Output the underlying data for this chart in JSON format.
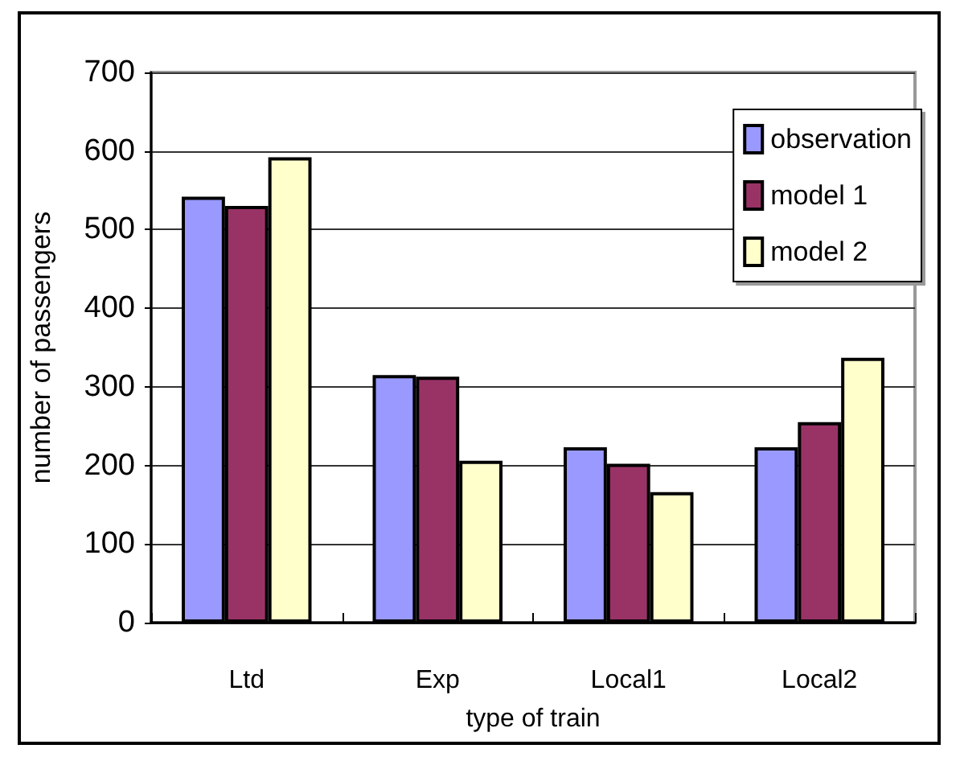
{
  "chart_data": {
    "type": "bar",
    "xlabel": "type of train",
    "ylabel": "number of passengers",
    "categories": [
      "Ltd",
      "Exp",
      "Local1",
      "Local2"
    ],
    "series": [
      {
        "name": "observation",
        "color": "#9999ff",
        "values": [
          542,
          315,
          223,
          223
        ]
      },
      {
        "name": "model 1",
        "color": "#993366",
        "values": [
          530,
          313,
          202,
          255
        ]
      },
      {
        "name": "model 2",
        "color": "#ffffcc",
        "values": [
          592,
          206,
          166,
          337
        ]
      }
    ],
    "ylim": [
      0,
      700
    ],
    "yticks": [
      0,
      100,
      200,
      300,
      400,
      500,
      600,
      700
    ],
    "grid": "y",
    "legend": "top right"
  }
}
